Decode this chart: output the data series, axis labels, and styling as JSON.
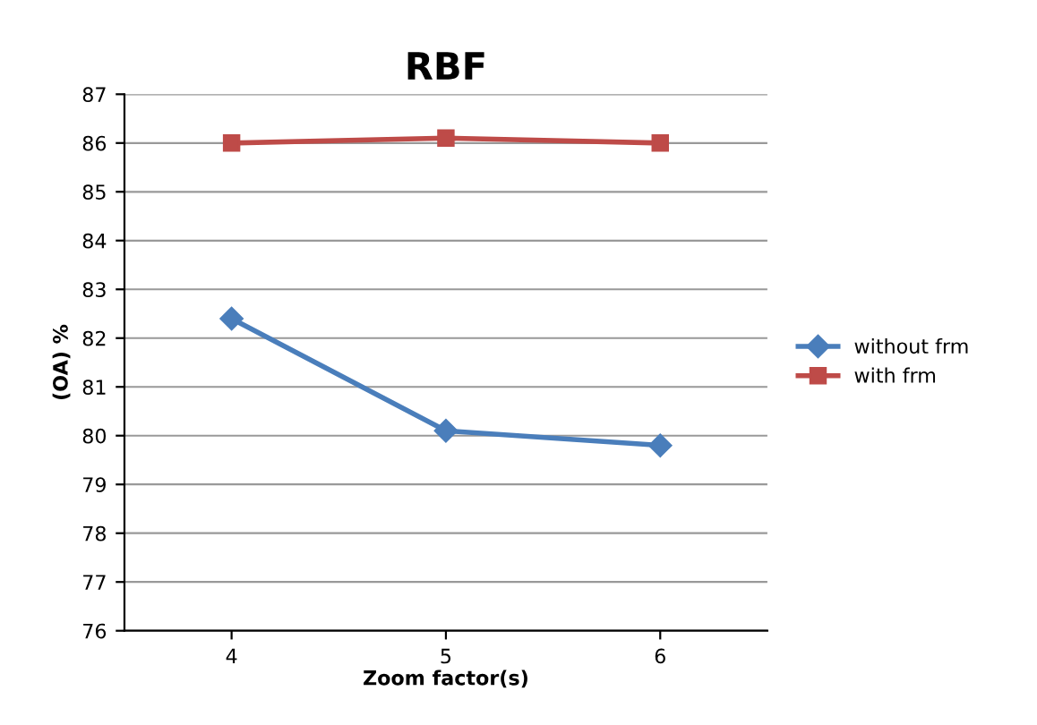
{
  "chart_data": {
    "type": "line",
    "title": "RBF",
    "xlabel": "Zoom factor(s)",
    "ylabel": "(OA) %",
    "categories": [
      "4",
      "5",
      "6"
    ],
    "series": [
      {
        "name": "without frm",
        "color": "#4a7ebb",
        "values": [
          82.4,
          80.1,
          79.8
        ],
        "marker": "diamond"
      },
      {
        "name": "with frm",
        "color": "#be4b48",
        "values": [
          86.0,
          86.1,
          86.0
        ],
        "marker": "square"
      }
    ],
    "ylim": [
      76,
      87
    ],
    "yticks": [
      76,
      77,
      78,
      79,
      80,
      81,
      82,
      83,
      84,
      85,
      86,
      87
    ],
    "grid": "y",
    "legend": "right"
  }
}
